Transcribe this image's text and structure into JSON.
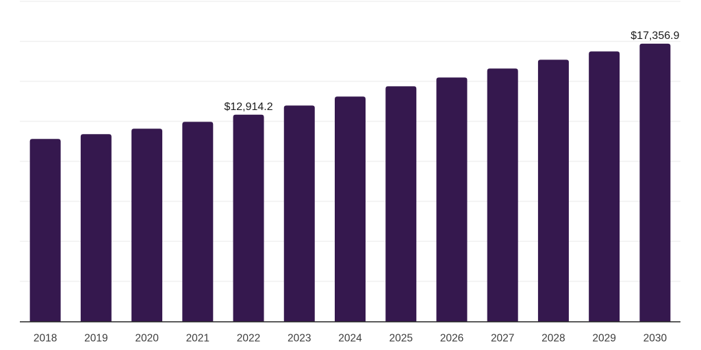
{
  "chart_data": {
    "type": "bar",
    "title": "",
    "xlabel": "",
    "ylabel": "",
    "categories": [
      "2018",
      "2019",
      "2020",
      "2021",
      "2022",
      "2023",
      "2024",
      "2025",
      "2026",
      "2027",
      "2028",
      "2029",
      "2030"
    ],
    "values": [
      11400,
      11700,
      12040,
      12470,
      12914.2,
      13490,
      14050,
      14690,
      15240,
      15800,
      16350,
      16870,
      17356.9
    ],
    "data_labels": {
      "2022": "$12,914.2",
      "2030": "$17,356.9"
    },
    "ylim": [
      0,
      20000
    ],
    "gridline_interval": 2500,
    "grid": "horizontal-only",
    "legend_position": "none",
    "y_axis_tick_labels_visible": false,
    "colors": {
      "bar": "#35184E",
      "gridline": "#F0F0F0",
      "axis_line": "#262626",
      "tick_label": "#3D3D3D",
      "data_label": "#1A1A1A",
      "background": "#FFFFFF"
    }
  }
}
